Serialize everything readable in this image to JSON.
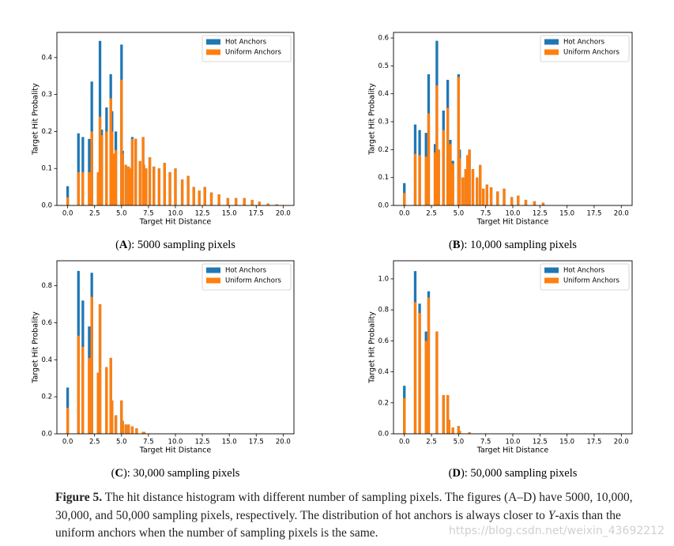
{
  "chart_data": [
    {
      "type": "bar",
      "xlabel": "Target Hit Distance",
      "ylabel": "Target Hit Probality",
      "caption": [
        "(",
        "A",
        "): 5000 sampling pixels"
      ],
      "legend": "upper right",
      "x": [
        0,
        1,
        1.41,
        2,
        2.24,
        2.83,
        3,
        3.16,
        3.61,
        4,
        4.12,
        4.24,
        4.47,
        5,
        5.1,
        5.39,
        5.66,
        5.83,
        6,
        6.32,
        6.71,
        7,
        7.07,
        7.28,
        7.62,
        8,
        8.49,
        9,
        9.49,
        10,
        10.63,
        11.18,
        11.7,
        12.21,
        12.73,
        13.34,
        14.04,
        14.87,
        15.62,
        16.4,
        17.12,
        17.8,
        18.6,
        19.4
      ],
      "series": [
        {
          "name": "Hot Anchors",
          "color": "#1f77b4",
          "values": [
            0.052,
            0.195,
            0.185,
            0.18,
            0.335,
            0.085,
            0.445,
            0.205,
            0.265,
            0.355,
            0.255,
            0.14,
            0.2,
            0.435,
            0.148,
            0.11,
            0.105,
            0.1,
            0.185,
            0.18,
            0.12,
            0.185,
            0.11,
            0.1,
            0.13,
            0.105,
            0.1,
            0.115,
            0.09,
            0.1,
            0.07,
            0.08,
            0.05,
            0.04,
            0.05,
            0.035,
            0.03,
            0.02,
            0.02,
            0.02,
            0.015,
            0.01,
            0.005,
            0.003
          ]
        },
        {
          "name": "Uniform Anchors",
          "color": "#ff7f0e",
          "values": [
            0.022,
            0.09,
            0.09,
            0.09,
            0.2,
            0.09,
            0.24,
            0.19,
            0.2,
            0.29,
            0.2,
            0.14,
            0.15,
            0.34,
            0.14,
            0.11,
            0.105,
            0.1,
            0.18,
            0.18,
            0.12,
            0.185,
            0.11,
            0.1,
            0.13,
            0.105,
            0.1,
            0.115,
            0.09,
            0.1,
            0.07,
            0.08,
            0.05,
            0.04,
            0.05,
            0.035,
            0.03,
            0.02,
            0.02,
            0.02,
            0.015,
            0.01,
            0.005,
            0.003
          ]
        }
      ],
      "xlim": [
        -1,
        21
      ],
      "xticks": [
        {
          "value": 0,
          "label": "0.0"
        },
        2.5,
        {
          "value": 5,
          "label": "5.0"
        },
        7.5,
        {
          "value": 10,
          "label": "10.0"
        },
        12.5,
        {
          "value": 15,
          "label": "15.0"
        },
        17.5,
        {
          "value": 20,
          "label": "20.0"
        }
      ],
      "ylim": [
        0,
        0.468
      ],
      "yticks": [
        {
          "value": 0,
          "label": "0.0"
        },
        0.1,
        0.2,
        0.3,
        0.4
      ]
    },
    {
      "type": "bar",
      "xlabel": "Target Hit Distance",
      "ylabel": "Target Hit Probality",
      "caption": [
        "(",
        "B",
        "): 10,000 sampling pixels"
      ],
      "legend": "upper right",
      "x": [
        0,
        1,
        1.41,
        2,
        2.24,
        2.83,
        3,
        3.16,
        3.61,
        4,
        4.12,
        4.24,
        4.47,
        5,
        5.1,
        5.39,
        5.66,
        5.83,
        6,
        6.32,
        6.71,
        7,
        7.28,
        7.62,
        8,
        8.6,
        9.2,
        9.9,
        10.5,
        11.2,
        12,
        12.8
      ],
      "series": [
        {
          "name": "Hot Anchors",
          "color": "#1f77b4",
          "values": [
            0.08,
            0.29,
            0.27,
            0.26,
            0.47,
            0.22,
            0.59,
            0.2,
            0.34,
            0.45,
            0.13,
            0.235,
            0.16,
            0.47,
            0.2,
            0.1,
            0.13,
            0.18,
            0.2,
            0.13,
            0.1,
            0.145,
            0.06,
            0.075,
            0.065,
            0.05,
            0.06,
            0.03,
            0.035,
            0.02,
            0.015,
            0.01
          ]
        },
        {
          "name": "Uniform Anchors",
          "color": "#ff7f0e",
          "values": [
            0.045,
            0.185,
            0.18,
            0.175,
            0.33,
            0.19,
            0.43,
            0.2,
            0.27,
            0.35,
            0.12,
            0.22,
            0.15,
            0.46,
            0.17,
            0.1,
            0.13,
            0.18,
            0.2,
            0.13,
            0.1,
            0.145,
            0.06,
            0.075,
            0.065,
            0.05,
            0.06,
            0.03,
            0.035,
            0.02,
            0.015,
            0.01
          ]
        }
      ],
      "xlim": [
        -1,
        21
      ],
      "xticks": [
        {
          "value": 0,
          "label": "0.0"
        },
        2.5,
        {
          "value": 5,
          "label": "5.0"
        },
        7.5,
        {
          "value": 10,
          "label": "10.0"
        },
        12.5,
        {
          "value": 15,
          "label": "15.0"
        },
        17.5,
        {
          "value": 20,
          "label": "20.0"
        }
      ],
      "ylim": [
        0,
        0.62
      ],
      "yticks": [
        {
          "value": 0,
          "label": "0.0"
        },
        0.1,
        0.2,
        0.3,
        0.4,
        0.5,
        0.6
      ]
    },
    {
      "type": "bar",
      "xlabel": "Target Hit Distance",
      "ylabel": "Target Hit Probality",
      "caption": [
        "(",
        "C",
        "): 30,000 sampling pixels"
      ],
      "legend": "upper right",
      "x": [
        0,
        1,
        1.41,
        2,
        2.24,
        2.83,
        3,
        3.61,
        4,
        4.12,
        4.47,
        5,
        5.1,
        5.39,
        5.66,
        6,
        6.4,
        7,
        7.1
      ],
      "series": [
        {
          "name": "Hot Anchors",
          "color": "#1f77b4",
          "values": [
            0.25,
            0.88,
            0.72,
            0.58,
            0.87,
            0.33,
            0.7,
            0.36,
            0.41,
            0.18,
            0.1,
            0.18,
            0.07,
            0.05,
            0.05,
            0.04,
            0.03,
            0.01,
            0.01
          ]
        },
        {
          "name": "Uniform Anchors",
          "color": "#ff7f0e",
          "values": [
            0.14,
            0.53,
            0.47,
            0.41,
            0.74,
            0.33,
            0.7,
            0.36,
            0.41,
            0.18,
            0.1,
            0.18,
            0.07,
            0.05,
            0.05,
            0.04,
            0.03,
            0.01,
            0.01
          ]
        }
      ],
      "xlim": [
        -1,
        21
      ],
      "xticks": [
        {
          "value": 0,
          "label": "0.0"
        },
        2.5,
        {
          "value": 5,
          "label": "5.0"
        },
        7.5,
        {
          "value": 10,
          "label": "10.0"
        },
        12.5,
        {
          "value": 15,
          "label": "15.0"
        },
        17.5,
        {
          "value": 20,
          "label": "20.0"
        }
      ],
      "ylim": [
        0,
        0.935
      ],
      "yticks": [
        {
          "value": 0,
          "label": "0.0"
        },
        0.2,
        0.4,
        0.6,
        0.8
      ]
    },
    {
      "type": "bar",
      "xlabel": "Target Hit Distance",
      "ylabel": "Target Hit Probality",
      "caption": [
        "(",
        "D",
        "): 50,000 sampling pixels"
      ],
      "legend": "upper right",
      "x": [
        0,
        1,
        1.41,
        2,
        2.24,
        3,
        3.61,
        4,
        4.12,
        4.47,
        5,
        5.1,
        6
      ],
      "series": [
        {
          "name": "Hot Anchors",
          "color": "#1f77b4",
          "values": [
            0.31,
            1.05,
            0.84,
            0.66,
            0.92,
            0.66,
            0.25,
            0.25,
            0.09,
            0.04,
            0.05,
            0.02,
            0.01
          ]
        },
        {
          "name": "Uniform Anchors",
          "color": "#ff7f0e",
          "values": [
            0.23,
            0.85,
            0.78,
            0.6,
            0.88,
            0.66,
            0.25,
            0.25,
            0.09,
            0.04,
            0.05,
            0.02,
            0.01
          ]
        }
      ],
      "xlim": [
        -1,
        21
      ],
      "xticks": [
        {
          "value": 0,
          "label": "0.0"
        },
        2.5,
        {
          "value": 5,
          "label": "5.0"
        },
        7.5,
        {
          "value": 10,
          "label": "10.0"
        },
        12.5,
        {
          "value": 15,
          "label": "15.0"
        },
        17.5,
        {
          "value": 20,
          "label": "20.0"
        }
      ],
      "ylim": [
        0,
        1.117
      ],
      "yticks": [
        {
          "value": 0,
          "label": "0.0"
        },
        {
          "value": 0.2,
          "label": "0.2"
        },
        {
          "value": 0.4,
          "label": "0.4"
        },
        {
          "value": 0.6,
          "label": "0.6"
        },
        {
          "value": 0.8,
          "label": "0.8"
        },
        {
          "value": 1,
          "label": "1.0"
        }
      ]
    }
  ],
  "figure_caption": {
    "label": "Figure 5.",
    "text": " The hit distance histogram with different number of sampling pixels. The figures (A–D) have 5000, 10,000, 30,000, and 50,000 sampling pixels, respectively. The distribution of hot anchors is always closer to ",
    "italic": "Y",
    "rest": "-axis than the uniform anchors when the number of sampling pixels is the same."
  },
  "watermark": "https://blog.csdn.net/weixin_43692212"
}
